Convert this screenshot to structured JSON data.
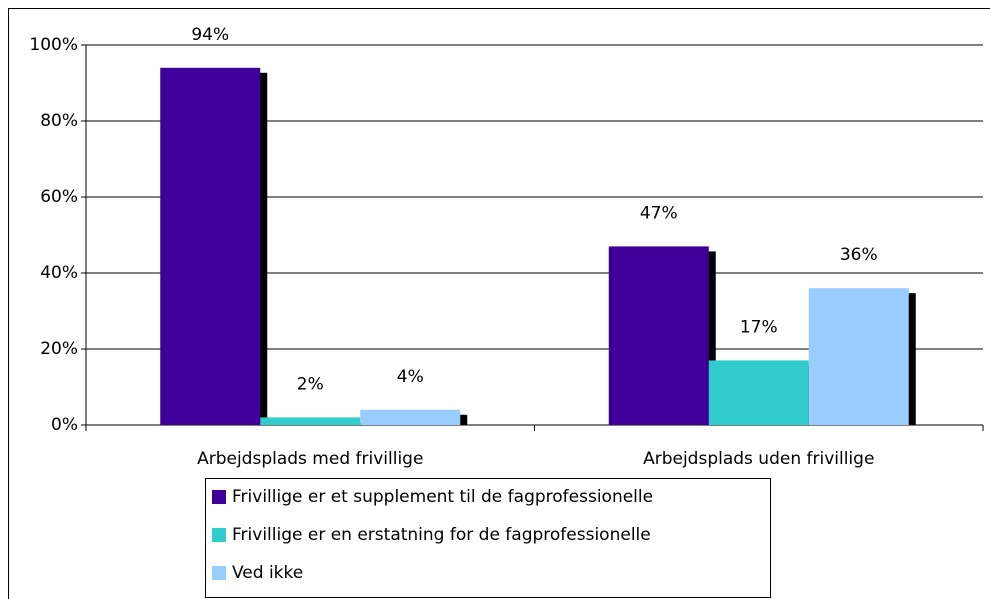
{
  "chart_data": {
    "type": "bar",
    "categories": [
      "Arbejdsplads med frivillige",
      "Arbejdsplads uden frivillige"
    ],
    "series": [
      {
        "name": "Frivillige er et supplement til de fagprofessionelle",
        "color": "#3f0099",
        "values": [
          94,
          47
        ],
        "value_labels": [
          "94%",
          "47%"
        ]
      },
      {
        "name": "Frivillige er en erstatning for de fagprofessionelle",
        "color": "#33cccc",
        "values": [
          2,
          17
        ],
        "value_labels": [
          "2%",
          "17%"
        ]
      },
      {
        "name": "Ved ikke",
        "color": "#99ccff",
        "values": [
          4,
          36
        ],
        "value_labels": [
          "4%",
          "36%"
        ]
      }
    ],
    "ylim": [
      0,
      100
    ],
    "yticks": [
      {
        "value": 0,
        "label": "0%"
      },
      {
        "value": 20,
        "label": "20%"
      },
      {
        "value": 40,
        "label": "40%"
      },
      {
        "value": 60,
        "label": "60%"
      },
      {
        "value": 80,
        "label": "80%"
      },
      {
        "value": 100,
        "label": "100%"
      }
    ],
    "grid": true
  }
}
